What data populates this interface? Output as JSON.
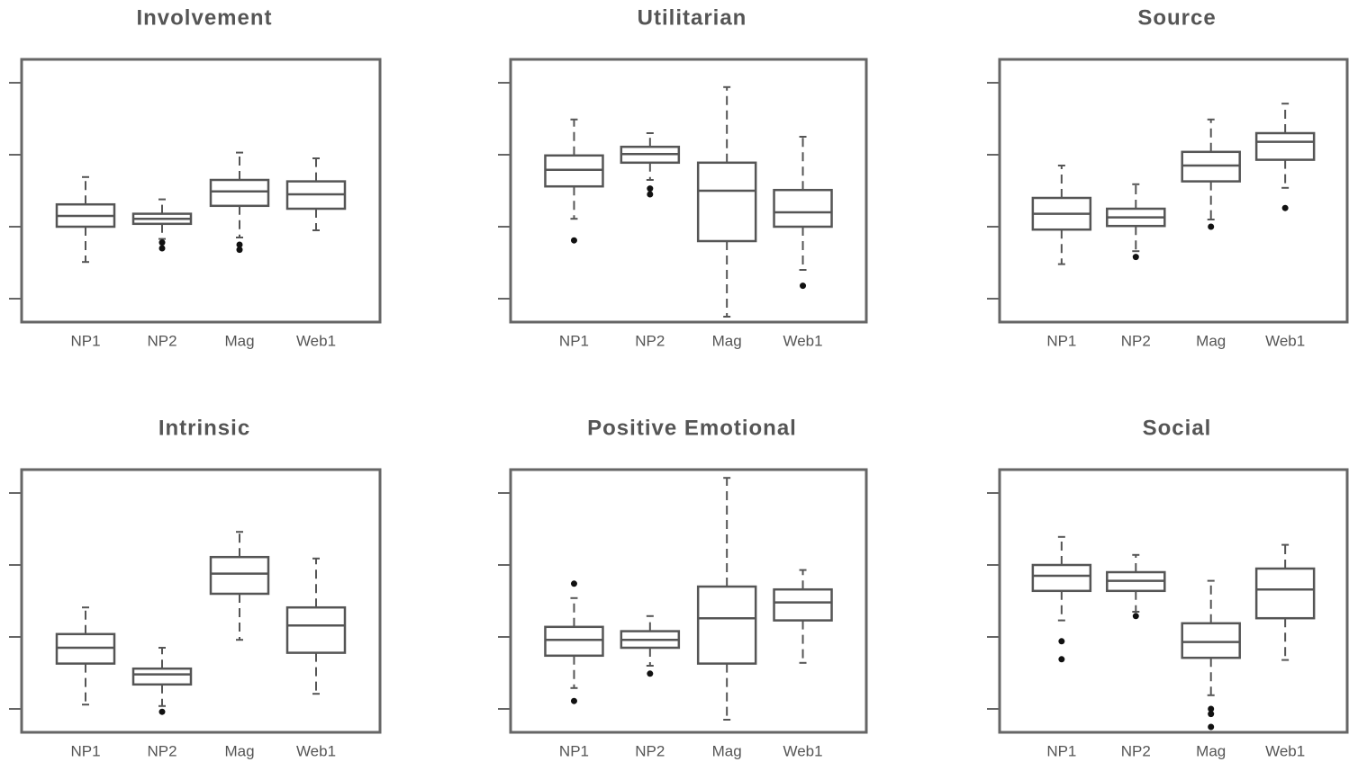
{
  "chart_data": [
    {
      "type": "box",
      "title": "Involvement",
      "categories": [
        "NP1",
        "NP2",
        "Mag",
        "Web1"
      ],
      "ylim": [
        0.675,
        4.325
      ],
      "yticks": [
        1,
        2,
        3,
        4
      ],
      "boxes": [
        {
          "whislo": 1.51,
          "q1": 2.0,
          "med": 2.15,
          "q3": 2.31,
          "whishi": 2.69,
          "fliers": []
        },
        {
          "whislo": 1.83,
          "q1": 2.04,
          "med": 2.11,
          "q3": 2.18,
          "whishi": 2.38,
          "fliers": [
            1.78,
            1.7
          ]
        },
        {
          "whislo": 1.85,
          "q1": 2.29,
          "med": 2.49,
          "q3": 2.65,
          "whishi": 3.03,
          "fliers": [
            1.75,
            1.68
          ]
        },
        {
          "whislo": 1.95,
          "q1": 2.25,
          "med": 2.45,
          "q3": 2.63,
          "whishi": 2.95,
          "fliers": []
        }
      ]
    },
    {
      "type": "box",
      "title": "Utilitarian",
      "categories": [
        "NP1",
        "NP2",
        "Mag",
        "Web1"
      ],
      "ylim": [
        0.675,
        4.325
      ],
      "yticks": [
        1,
        2,
        3,
        4
      ],
      "boxes": [
        {
          "whislo": 2.11,
          "q1": 2.56,
          "med": 2.79,
          "q3": 2.99,
          "whishi": 3.49,
          "fliers": [
            1.81
          ]
        },
        {
          "whislo": 2.65,
          "q1": 2.89,
          "med": 3.01,
          "q3": 3.11,
          "whishi": 3.3,
          "fliers": [
            2.53,
            2.45
          ]
        },
        {
          "whislo": 0.75,
          "q1": 1.8,
          "med": 2.5,
          "q3": 2.89,
          "whishi": 3.94,
          "fliers": []
        },
        {
          "whislo": 1.4,
          "q1": 2.0,
          "med": 2.2,
          "q3": 2.51,
          "whishi": 3.25,
          "fliers": [
            1.18
          ]
        }
      ]
    },
    {
      "type": "box",
      "title": "Source",
      "categories": [
        "NP1",
        "NP2",
        "Mag",
        "Web1"
      ],
      "ylim": [
        0.675,
        4.325
      ],
      "yticks": [
        1,
        2,
        3,
        4
      ],
      "boxes": [
        {
          "whislo": 1.48,
          "q1": 1.96,
          "med": 2.18,
          "q3": 2.4,
          "whishi": 2.85,
          "fliers": []
        },
        {
          "whislo": 1.66,
          "q1": 2.01,
          "med": 2.13,
          "q3": 2.25,
          "whishi": 2.59,
          "fliers": [
            1.58
          ]
        },
        {
          "whislo": 2.1,
          "q1": 2.63,
          "med": 2.85,
          "q3": 3.04,
          "whishi": 3.49,
          "fliers": [
            2.0
          ]
        },
        {
          "whislo": 2.54,
          "q1": 2.93,
          "med": 3.18,
          "q3": 3.3,
          "whishi": 3.71,
          "fliers": [
            2.26
          ]
        }
      ]
    },
    {
      "type": "box",
      "title": "Intrinsic",
      "categories": [
        "NP1",
        "NP2",
        "Mag",
        "Web1"
      ],
      "ylim": [
        0.675,
        4.325
      ],
      "yticks": [
        1,
        2,
        3,
        4
      ],
      "boxes": [
        {
          "whislo": 1.06,
          "q1": 1.63,
          "med": 1.85,
          "q3": 2.04,
          "whishi": 2.41,
          "fliers": []
        },
        {
          "whislo": 1.04,
          "q1": 1.34,
          "med": 1.48,
          "q3": 1.56,
          "whishi": 1.85,
          "fliers": [
            0.96
          ]
        },
        {
          "whislo": 1.96,
          "q1": 2.6,
          "med": 2.88,
          "q3": 3.11,
          "whishi": 3.46,
          "fliers": []
        },
        {
          "whislo": 1.21,
          "q1": 1.78,
          "med": 2.16,
          "q3": 2.41,
          "whishi": 3.09,
          "fliers": []
        }
      ]
    },
    {
      "type": "box",
      "title": "Positive Emotional",
      "categories": [
        "NP1",
        "NP2",
        "Mag",
        "Web1"
      ],
      "ylim": [
        0.675,
        4.325
      ],
      "yticks": [
        1,
        2,
        3,
        4
      ],
      "boxes": [
        {
          "whislo": 1.29,
          "q1": 1.74,
          "med": 1.96,
          "q3": 2.14,
          "whishi": 2.54,
          "fliers": [
            2.74,
            1.11
          ]
        },
        {
          "whislo": 1.6,
          "q1": 1.85,
          "med": 1.96,
          "q3": 2.08,
          "whishi": 2.29,
          "fliers": [
            1.49
          ]
        },
        {
          "whislo": 0.85,
          "q1": 1.63,
          "med": 2.26,
          "q3": 2.7,
          "whishi": 4.21,
          "fliers": []
        },
        {
          "whislo": 1.64,
          "q1": 2.23,
          "med": 2.48,
          "q3": 2.66,
          "whishi": 2.93,
          "fliers": []
        }
      ]
    },
    {
      "type": "box",
      "title": "Social",
      "categories": [
        "NP1",
        "NP2",
        "Mag",
        "Web1"
      ],
      "ylim": [
        0.675,
        4.325
      ],
      "yticks": [
        1,
        2,
        3,
        4
      ],
      "boxes": [
        {
          "whislo": 2.23,
          "q1": 2.64,
          "med": 2.85,
          "q3": 3.0,
          "whishi": 3.39,
          "fliers": [
            1.94,
            1.69
          ]
        },
        {
          "whislo": 2.35,
          "q1": 2.64,
          "med": 2.78,
          "q3": 2.9,
          "whishi": 3.14,
          "fliers": [
            2.29
          ]
        },
        {
          "whislo": 1.19,
          "q1": 1.71,
          "med": 1.93,
          "q3": 2.19,
          "whishi": 2.78,
          "fliers": [
            1.0,
            0.93,
            0.75
          ]
        },
        {
          "whislo": 1.68,
          "q1": 2.26,
          "med": 2.66,
          "q3": 2.95,
          "whishi": 3.28,
          "fliers": []
        }
      ]
    }
  ]
}
